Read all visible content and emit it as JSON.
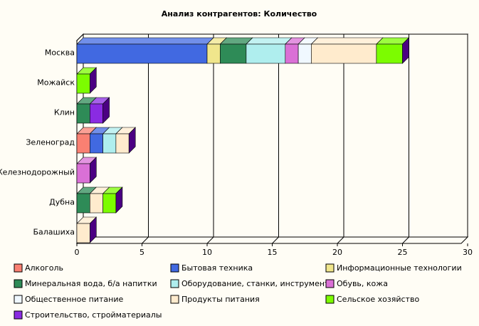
{
  "chart_data": {
    "type": "bar",
    "orientation": "horizontal",
    "stacked": true,
    "three_d": true,
    "title": "Анализ контрагентов: Количество",
    "xlabel": "",
    "ylabel": "",
    "xlim": [
      0,
      30
    ],
    "x_ticks": [
      "0",
      "5",
      "10",
      "15",
      "20",
      "25",
      "30"
    ],
    "grid": true,
    "legend_position": "bottom",
    "categories": [
      "Москва",
      "Можайск",
      "Клин",
      "Зеленоград",
      "Железнодорожный",
      "Дубна",
      "Балашиха"
    ],
    "series": [
      {
        "name": "Алкоголь",
        "color": "#fa8072",
        "values": [
          0,
          0,
          0,
          1,
          0,
          0,
          0
        ]
      },
      {
        "name": "Бытовая техника",
        "color": "#4169e1",
        "values": [
          10,
          0,
          0,
          1,
          0,
          0,
          0
        ]
      },
      {
        "name": "Информационные технологии",
        "color": "#f0e68c",
        "values": [
          1,
          0,
          0,
          0,
          0,
          0,
          0
        ]
      },
      {
        "name": "Минеральная вода, б/а напитки",
        "color": "#2e8b57",
        "values": [
          2,
          0,
          1,
          0,
          0,
          1,
          0
        ]
      },
      {
        "name": "Оборудование, станки, инструмент",
        "color": "#afeeee",
        "values": [
          3,
          0,
          0,
          1,
          0,
          0,
          0
        ]
      },
      {
        "name": "Обувь, кожа",
        "color": "#da70d6",
        "values": [
          1,
          0,
          0,
          0,
          1,
          0,
          0
        ]
      },
      {
        "name": "Общественное питание",
        "color": "#f0f8ff",
        "values": [
          1,
          0,
          0,
          0,
          0,
          0,
          0
        ]
      },
      {
        "name": "Продукты питания",
        "color": "#ffebcd",
        "values": [
          5,
          0,
          0,
          1,
          0,
          1,
          1
        ]
      },
      {
        "name": "Сельское хозяйство",
        "color": "#7cfc00",
        "values": [
          2,
          1,
          0,
          0,
          0,
          1,
          0
        ]
      },
      {
        "name": "Строительство, стройматериалы",
        "color": "#8a2be2",
        "values": [
          0,
          0,
          1,
          0,
          0,
          0,
          0
        ]
      }
    ]
  }
}
